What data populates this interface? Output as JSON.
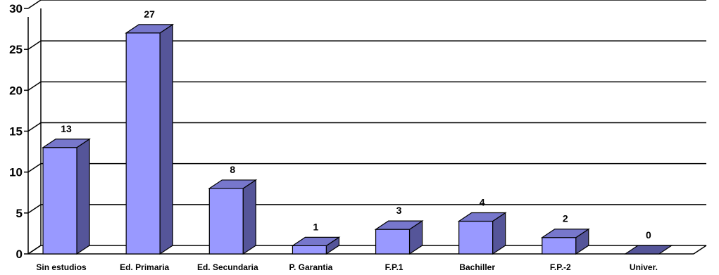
{
  "chart_data": {
    "type": "bar",
    "categories": [
      "Sin estudios",
      "Ed. Primaria",
      "Ed. Secundaria",
      "P. Garantia",
      "F.P.1",
      "Bachiller",
      "F.P.-2",
      "Univer."
    ],
    "values": [
      13,
      27,
      8,
      1,
      3,
      4,
      2,
      0
    ],
    "data_labels": [
      "13",
      "27",
      "8",
      "1",
      "3",
      "4",
      "2",
      "0"
    ],
    "yticks": [
      "0",
      "5",
      "10",
      "15",
      "20",
      "25",
      "30"
    ],
    "ylim": [
      0,
      30
    ],
    "title": "",
    "xlabel": "",
    "ylabel": "",
    "grid": true,
    "legend": "none",
    "style": "3d-column",
    "colors": {
      "bar_front": "#9999ff",
      "bar_top": "#7777cc",
      "bar_side": "#555599",
      "grid": "#000000",
      "axis": "#000000"
    }
  }
}
